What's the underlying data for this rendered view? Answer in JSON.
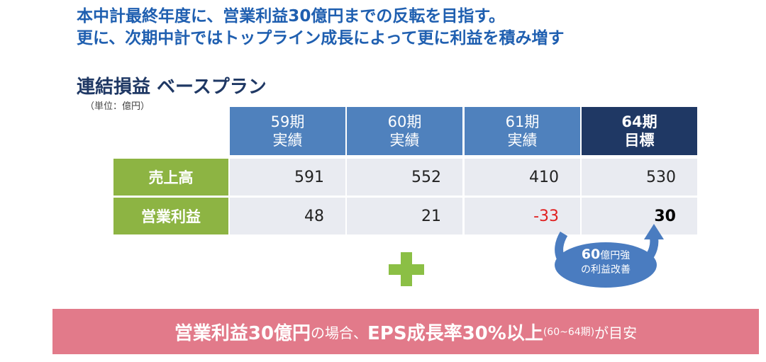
{
  "headline": {
    "line1": "本中計最終年度に、営業利益30億円までの反転を目指す。",
    "line2": "更に、次期中計ではトップライン成長によって更に利益を積み増す"
  },
  "section": {
    "title": "連結損益 ベースプラン",
    "unit_note": "（単位：億円）"
  },
  "table": {
    "columns": [
      {
        "period": "59期",
        "kind": "実績"
      },
      {
        "period": "60期",
        "kind": "実績"
      },
      {
        "period": "61期",
        "kind": "実績"
      },
      {
        "period": "64期",
        "kind": "目標"
      }
    ],
    "rows": [
      {
        "label": "売上高",
        "values": [
          "591",
          "552",
          "410",
          "530"
        ]
      },
      {
        "label": "営業利益",
        "values": [
          "48",
          "21",
          "-33",
          "30"
        ]
      }
    ],
    "colors": {
      "header": "#4f81bd",
      "header_target": "#1f3864",
      "row_label": "#8db443",
      "cell_bg": "#e9ebf1",
      "negative": "#e02020"
    }
  },
  "bubble": {
    "amount": "60",
    "unit": "億円強",
    "line2": "の利益改善",
    "color": "#4a7cc0"
  },
  "plus_icon_color": "#8bbf45",
  "banner": {
    "part1": "営業利益30億円",
    "part2": "の場合、",
    "part3": "EPS成長率30%以上",
    "part4": "(60~64期)",
    "part5": "が目安",
    "color": "#e27a8a"
  }
}
